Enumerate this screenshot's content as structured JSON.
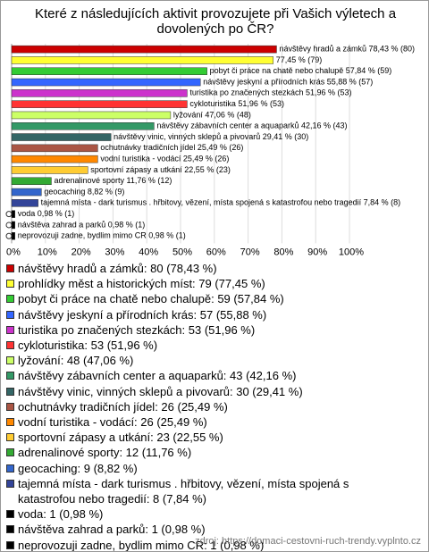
{
  "chart_data": {
    "type": "bar",
    "orientation": "horizontal",
    "title": "Které z následujících aktivit provozujete při Vašich výletech a dovolených po ČR?",
    "categories": [
      "návštěvy hradů a zámků",
      "prohlídky měst a historických míst",
      "pobyt či práce na chatě nebo chalupě",
      "návštěvy jeskyní a přírodních krás",
      "turistika po značených stezkách",
      "cykloturistika",
      "lyžování",
      "návštěvy zábavních center a aquaparků",
      "návštěvy vinic, vinných sklepů a pivovarů",
      "ochutnávky tradičních jídel",
      "vodní turistika - vodácí",
      "sportovní zápasy a utkání",
      "adrenalinové sporty",
      "geocaching",
      "tajemná místa - dark turismus . hřbitovy, vězení, místa spojená s katastrofou nebo tragedií",
      "voda",
      "návštěva zahrad a parků",
      "neprovozuji zadne, bydlim mimo CR"
    ],
    "values": [
      78.43,
      77.45,
      57.84,
      55.88,
      51.96,
      51.96,
      47.06,
      42.16,
      29.41,
      25.49,
      25.49,
      22.55,
      11.76,
      8.82,
      7.84,
      0.98,
      0.98,
      0.98
    ],
    "value_labels": [
      "návštěvy hradů a zámků 78,43 % (80)",
      "77,45 % (79)",
      "pobyt či práce na chatě nebo chalupě 57,84 % (59)",
      "návštěvy jeskyní a přírodních krás 55,88 % (57)",
      "turistika po značených stezkách 51,96 % (53)",
      "cykloturistika 51,96 % (53)",
      "lyžování 47,06 % (48)",
      "návštěvy zábavních center a aquaparků 42,16 % (43)",
      "návštěvy vinic, vinných sklepů a pivovarů 29,41 % (30)",
      "ochutnávky tradičních jídel 25,49 % (26)",
      "vodní turistika - vodácí 25,49 % (26)",
      "sportovní zápasy a utkání 22,55 % (23)",
      "adrenalinové sporty 11,76 % (12)",
      "geocaching 8,82 % (9)",
      "tajemná místa - dark turismus . hřbitovy, vězení, místa spojená s katastrofou nebo tragedií 7,84 % (8)",
      "voda 0,98 % (1)",
      "návštěva zahrad a parků 0,98 % (1)",
      "neprovozuji zadne, bydlim mimo CR 0,98 % (1)"
    ],
    "legend_labels": [
      "návštěvy hradů a zámků: 80 (78,43 %)",
      "prohlídky měst a historických míst: 79 (77,45 %)",
      "pobyt či práce na chatě nebo chalupě: 59 (57,84 %)",
      "návštěvy jeskyní a přírodních krás: 57 (55,88 %)",
      "turistika po značených stezkách: 53 (51,96 %)",
      "cykloturistika: 53 (51,96 %)",
      "lyžování: 48 (47,06 %)",
      "návštěvy zábavních center a aquaparků: 43 (42,16 %)",
      "návštěvy vinic, vinných sklepů a pivovarů: 30 (29,41 %)",
      "ochutnávky tradičních jídel: 26 (25,49 %)",
      "vodní turistika - vodácí: 26 (25,49 %)",
      "sportovní zápasy a utkání: 23 (22,55 %)",
      "adrenalinové sporty: 12 (11,76 %)",
      "geocaching: 9 (8,82 %)",
      "tajemná místa - dark turismus . hřbitovy, vězení, místa spojená s katastrofou nebo tragedií: 8 (7,84 %)",
      "voda: 1 (0,98 %)",
      "návštěva zahrad a parků: 1 (0,98 %)",
      "neprovozuji zadne, bydlim mimo CR: 1 (0,98 %)"
    ],
    "colors": [
      "#cc0000",
      "#ffff33",
      "#33cc33",
      "#3366ff",
      "#cc33cc",
      "#ff3333",
      "#ccff66",
      "#339966",
      "#336666",
      "#aa5544",
      "#ff8800",
      "#ffcc33",
      "#33aa33",
      "#3366cc",
      "#334499",
      "#000000",
      "#000000",
      "#000000"
    ],
    "xlim": [
      0,
      100
    ],
    "xticks": [
      {
        "value": 0,
        "label": "0%"
      },
      {
        "value": 10,
        "label": "10%"
      },
      {
        "value": 20,
        "label": "20%"
      },
      {
        "value": 30,
        "label": "30%"
      },
      {
        "value": 40,
        "label": "40%"
      },
      {
        "value": 50,
        "label": "50%"
      },
      {
        "value": 60,
        "label": "60%"
      },
      {
        "value": 70,
        "label": "70%"
      },
      {
        "value": 80,
        "label": "80%"
      },
      {
        "value": 90,
        "label": "90%"
      },
      {
        "value": 100,
        "label": "100%"
      }
    ],
    "grid": true,
    "source": "zdroj: https://domaci-cestovni-ruch-trendy.vyplnto.cz"
  }
}
